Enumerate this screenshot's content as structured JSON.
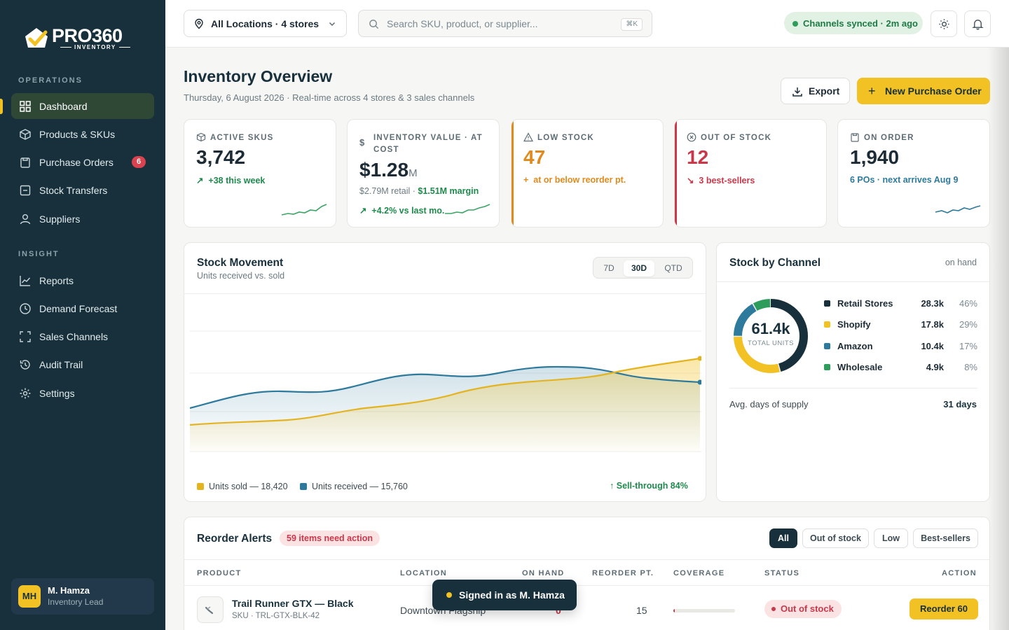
{
  "brand": {
    "name": "PRO360",
    "sub": "INVENTORY"
  },
  "sidebar": {
    "sections": [
      {
        "label": "OPERATIONS"
      },
      {
        "label": "INSIGHT"
      }
    ],
    "items": [
      {
        "label": "Dashboard",
        "icon": "grid-icon"
      },
      {
        "label": "Products & SKUs",
        "icon": "box-icon"
      },
      {
        "label": "Purchase Orders",
        "icon": "clipboard-icon",
        "badge": "6"
      },
      {
        "label": "Stock Transfers",
        "icon": "transfer-icon"
      },
      {
        "label": "Suppliers",
        "icon": "user-icon"
      },
      {
        "label": "Reports",
        "icon": "chart-line-icon"
      },
      {
        "label": "Demand Forecast",
        "icon": "clock-icon"
      },
      {
        "label": "Sales Channels",
        "icon": "frame-icon"
      },
      {
        "label": "Audit Trail",
        "icon": "history-icon"
      },
      {
        "label": "Settings",
        "icon": "gear-icon"
      }
    ],
    "user": {
      "initials": "MH",
      "name": "M. Hamza",
      "role": "Inventory Lead"
    }
  },
  "topbar": {
    "location": "All Locations · 4 stores",
    "search_placeholder": "Search SKU, product, or supplier...",
    "search_shortcut": "⌘K",
    "sync_status": "Channels synced · 2m ago"
  },
  "header": {
    "title": "Inventory Overview",
    "subtitle": "Thursday, 6 August 2026 · Real-time across 4 stores & 3 sales channels",
    "export_label": "Export",
    "primary_label": "New Purchase Order"
  },
  "kpis": [
    {
      "label": "ACTIVE SKUS",
      "value": "3,742",
      "delta": "+38 this week",
      "color": "#1e8a4c"
    },
    {
      "label": "INVENTORY VALUE · AT COST",
      "value": "$1.28",
      "unit": "M",
      "detail1": "$2.79M retail · ",
      "detail2": "$1.51M margin",
      "delta": "+4.2% vs last mo.",
      "color": "#1e8a4c"
    },
    {
      "label": "LOW STOCK",
      "value": "47",
      "delta": "at or below reorder pt.",
      "color": "#e08a1e"
    },
    {
      "label": "OUT OF STOCK",
      "value": "12",
      "delta": "3 best-sellers",
      "color": "#c9384a"
    },
    {
      "label": "ON ORDER",
      "value": "1,940",
      "delta": "6 POs · next arrives Aug 9",
      "color": "#2d7a9c"
    }
  ],
  "movement": {
    "title": "Stock Movement",
    "subtitle": "Units received vs. sold",
    "ranges": [
      "7D",
      "30D",
      "QTD"
    ],
    "active_range": "30D",
    "legend_sold": "Units sold — 18,420",
    "legend_received": "Units received — 15,760",
    "sell_through": "Sell-through 84%",
    "colors": {
      "sold": "#e4b320",
      "received": "#2d7a9c"
    }
  },
  "channels": {
    "title": "Stock by Channel",
    "meta": "on hand",
    "total": "61.4k",
    "total_label": "TOTAL UNITS",
    "rows": [
      {
        "name": "Retail Stores",
        "value": "28.3k",
        "pct": "46%",
        "share": 46,
        "color": "#17303b"
      },
      {
        "name": "Shopify",
        "value": "17.8k",
        "pct": "29%",
        "share": 29,
        "color": "#f2c224"
      },
      {
        "name": "Amazon",
        "value": "10.4k",
        "pct": "17%",
        "share": 17,
        "color": "#2d7a9c"
      },
      {
        "name": "Wholesale",
        "value": "4.9k",
        "pct": "8%",
        "share": 8,
        "color": "#2e9c5b"
      }
    ],
    "supply_label": "Avg. days of supply",
    "supply_value": "31 days"
  },
  "alerts": {
    "title": "Reorder Alerts",
    "tag": "59 items need action",
    "filters": [
      "All",
      "Out of stock",
      "Low",
      "Best-sellers"
    ],
    "columns": [
      "PRODUCT",
      "LOCATION",
      "ON HAND",
      "REORDER PT.",
      "COVERAGE",
      "STATUS",
      "ACTION"
    ],
    "rows": [
      {
        "product": "Trail Runner GTX — Black",
        "sku": "SKU · TRL-GTX-BLK-42",
        "location": "Downtown Flagship",
        "on_hand": "0",
        "reorder_pt": "15",
        "coverage": 0.02,
        "status": "Out of stock",
        "action": "Reorder 60"
      }
    ]
  },
  "toast": {
    "text": "Signed in as M. Hamza"
  }
}
